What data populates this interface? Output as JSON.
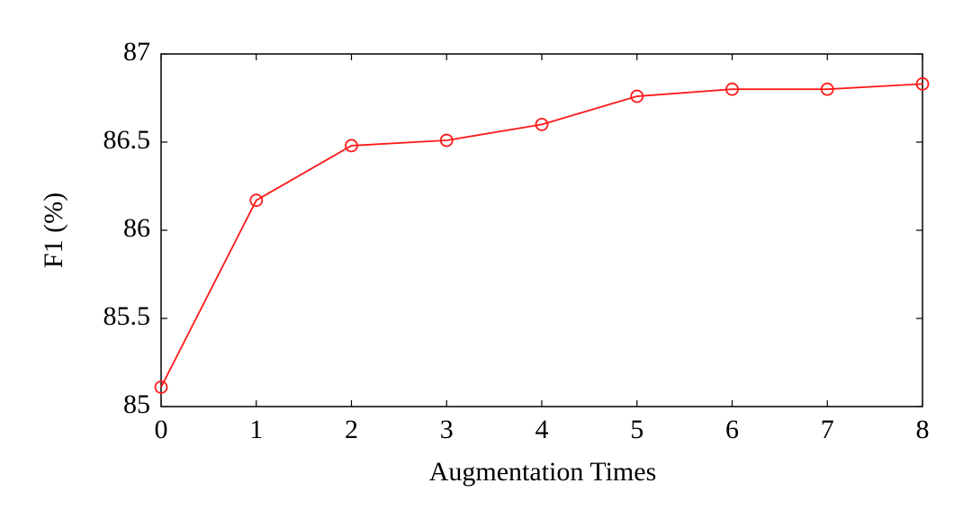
{
  "chart_data": {
    "type": "line",
    "x_label": "Augmentation Times",
    "y_label": "F1 (%)",
    "x": [
      0,
      1,
      2,
      3,
      4,
      5,
      6,
      7,
      8
    ],
    "series": [
      {
        "color": "#ff1a1a",
        "marker": "circle",
        "values": [
          85.11,
          86.17,
          86.48,
          86.51,
          86.6,
          86.76,
          86.8,
          86.8,
          86.83
        ]
      }
    ],
    "xlim": [
      0,
      8
    ],
    "xticks": [
      0,
      1,
      2,
      3,
      4,
      5,
      6,
      7,
      8
    ],
    "ylim": [
      85,
      87
    ],
    "yticks": [
      85,
      85.5,
      86,
      86.5,
      87
    ],
    "grid": false
  }
}
